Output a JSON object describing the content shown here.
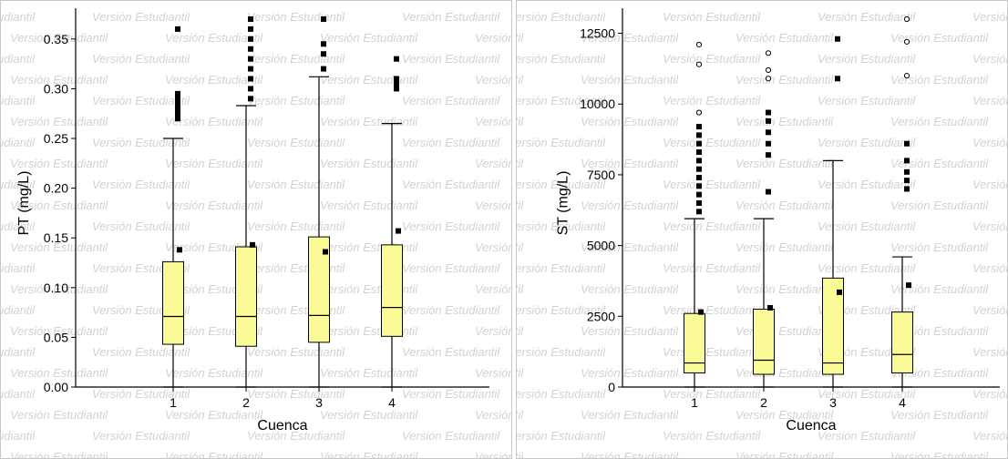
{
  "watermark": "Versión Estudiantil",
  "colors": {
    "box_fill": "#fafa96",
    "box_stroke": "#000000",
    "outlier": "#000000",
    "background": "#ffffff",
    "watermark": "#d2d2d2"
  },
  "chart_data": [
    {
      "type": "boxplot",
      "xlabel": "Cuenca",
      "ylabel": "PT (mg/L)",
      "ylim": [
        0,
        0.37
      ],
      "yticks": [
        0.0,
        0.05,
        0.1,
        0.15,
        0.2,
        0.25,
        0.3,
        0.35
      ],
      "ytick_labels": [
        "0.00",
        "0.05",
        "0.10",
        "0.15",
        "0.20",
        "0.25",
        "0.30",
        "0.35"
      ],
      "categories": [
        "1",
        "2",
        "3",
        "4"
      ],
      "boxes": [
        {
          "category": "1",
          "min": 0.0,
          "q1": 0.043,
          "median": 0.071,
          "q3": 0.126,
          "max": 0.25,
          "mean": 0.138,
          "outliers": [
            0.27,
            0.275,
            0.28,
            0.285,
            0.29,
            0.295,
            0.36
          ]
        },
        {
          "category": "2",
          "min": 0.0,
          "q1": 0.041,
          "median": 0.071,
          "q3": 0.141,
          "max": 0.283,
          "mean": 0.143,
          "outliers": [
            0.29,
            0.3,
            0.31,
            0.32,
            0.33,
            0.34,
            0.35,
            0.36,
            0.37
          ]
        },
        {
          "category": "3",
          "min": 0.0,
          "q1": 0.045,
          "median": 0.072,
          "q3": 0.151,
          "max": 0.312,
          "mean": 0.136,
          "outliers": [
            0.32,
            0.335,
            0.345,
            0.37
          ]
        },
        {
          "category": "4",
          "min": 0.0,
          "q1": 0.051,
          "median": 0.08,
          "q3": 0.143,
          "max": 0.265,
          "mean": 0.157,
          "outliers": [
            0.3,
            0.305,
            0.31,
            0.33
          ]
        }
      ]
    },
    {
      "type": "boxplot",
      "xlabel": "Cuenca",
      "ylabel": "ST (mg/L)",
      "ylim": [
        0,
        13000
      ],
      "yticks": [
        0,
        2500,
        5000,
        7500,
        10000,
        12500
      ],
      "ytick_labels": [
        "0",
        "2500",
        "5000",
        "7500",
        "10000",
        "12500"
      ],
      "categories": [
        "1",
        "2",
        "3",
        "4"
      ],
      "boxes": [
        {
          "category": "1",
          "min": 0,
          "q1": 500,
          "median": 850,
          "q3": 2600,
          "max": 5950,
          "mean": 2650,
          "outliers": [
            6200,
            6500,
            6800,
            7100,
            7400,
            7700,
            8000,
            8300,
            8600,
            8900,
            9200
          ],
          "far_outliers": [
            9700,
            11400,
            12100
          ]
        },
        {
          "category": "2",
          "min": 0,
          "q1": 450,
          "median": 950,
          "q3": 2750,
          "max": 5950,
          "mean": 2800,
          "outliers": [
            6900,
            8200,
            8600,
            9000,
            9400,
            9700
          ],
          "far_outliers": [
            10900,
            11200,
            11800
          ]
        },
        {
          "category": "3",
          "min": 0,
          "q1": 450,
          "median": 850,
          "q3": 3850,
          "max": 8000,
          "mean": 3350,
          "outliers": [
            10900,
            12300
          ],
          "far_outliers": []
        },
        {
          "category": "4",
          "min": 0,
          "q1": 500,
          "median": 1150,
          "q3": 2650,
          "max": 4600,
          "mean": 3600,
          "outliers": [
            7000,
            7300,
            7600,
            8000,
            8600
          ],
          "far_outliers": [
            11000,
            12200,
            13000
          ]
        }
      ]
    }
  ]
}
